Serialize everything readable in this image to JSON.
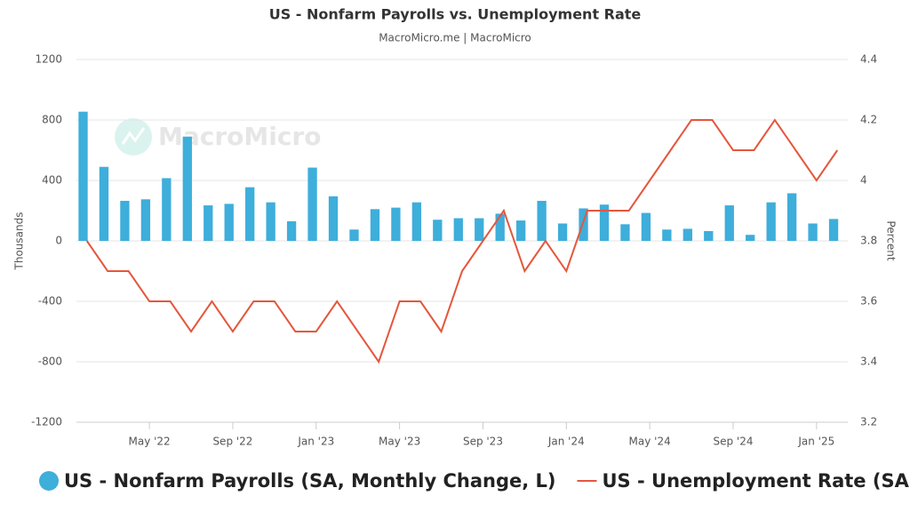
{
  "chart_data": {
    "type": "bar-line",
    "title": "US - Nonfarm Payrolls vs. Unemployment Rate",
    "subtitle": "MacroMicro.me | MacroMicro",
    "watermark": "MacroMicro",
    "y_label": "Thousands",
    "y2_label": "Percent",
    "categories": [
      null,
      null,
      null,
      "May '22",
      null,
      null,
      null,
      "Sep '22",
      null,
      null,
      null,
      "Jan '23",
      null,
      null,
      null,
      "May '23",
      null,
      null,
      null,
      "Sep '23",
      null,
      null,
      null,
      "Jan '24",
      null,
      null,
      null,
      "May '24",
      null,
      null,
      null,
      "Sep '24",
      null,
      null,
      null,
      "Jan '25",
      null
    ],
    "series": [
      {
        "name": "US - Nonfarm Payrolls (SA, Monthly Change, L)",
        "type": "bar",
        "color": "#3eaedb",
        "values": [
          855,
          490,
          265,
          275,
          415,
          690,
          235,
          245,
          355,
          255,
          130,
          485,
          295,
          75,
          210,
          220,
          255,
          140,
          150,
          150,
          180,
          135,
          265,
          115,
          215,
          240,
          110,
          185,
          75,
          80,
          65,
          235,
          40,
          255,
          315,
          115,
          145
        ]
      },
      {
        "name": "US - Unemployment Rate (SA, R)",
        "type": "line",
        "axis": "y2",
        "color": "#e4573d",
        "values": [
          3.8,
          3.7,
          3.7,
          3.6,
          3.6,
          3.5,
          3.6,
          3.5,
          3.6,
          3.6,
          3.5,
          3.5,
          3.6,
          3.5,
          3.4,
          3.6,
          3.6,
          3.5,
          3.7,
          3.8,
          3.9,
          3.7,
          3.8,
          3.7,
          3.9,
          3.9,
          3.9,
          4.0,
          4.1,
          4.2,
          4.2,
          4.1,
          4.1,
          4.2,
          4.1,
          4.0,
          4.1
        ]
      }
    ],
    "ylim": [
      -1200,
      1200
    ],
    "yticks": [
      -1200,
      -800,
      -400,
      0,
      400,
      800,
      1200
    ],
    "y2lim": [
      3.2,
      4.4
    ],
    "y2ticks": [
      3.2,
      3.4,
      3.6,
      3.8,
      4,
      4.2,
      4.4
    ],
    "grid": true
  }
}
